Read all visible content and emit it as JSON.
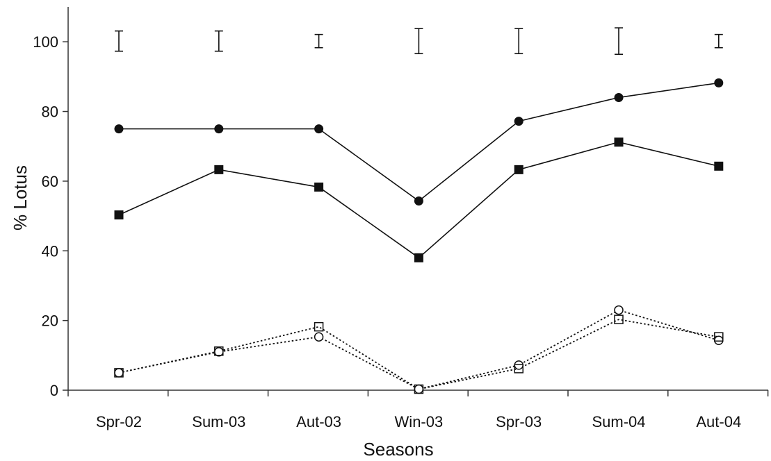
{
  "chart_data": {
    "type": "line",
    "xlabel": "Seasons",
    "ylabel": "% Lotus",
    "categories": [
      "Spr-02",
      "Sum-03",
      "Aut-03",
      "Win-03",
      "Spr-03",
      "Sum-04",
      "Aut-04"
    ],
    "ylim": [
      0,
      110
    ],
    "yticks": [
      0,
      20,
      40,
      60,
      80,
      100
    ],
    "grid": false,
    "legend": "none",
    "series": [
      {
        "marker": "filled-circle",
        "line": "solid",
        "values": [
          75,
          75,
          75,
          54.3,
          77.2,
          84,
          88.2
        ]
      },
      {
        "marker": "filled-square",
        "line": "solid",
        "values": [
          50.3,
          63.3,
          58.3,
          38,
          63.3,
          71.2,
          64.3
        ]
      },
      {
        "marker": "open-circle",
        "line": "dotted",
        "values": [
          5,
          11,
          15.3,
          0.3,
          7.2,
          23,
          14.3
        ]
      },
      {
        "marker": "open-square",
        "line": "dotted",
        "values": [
          5,
          11.2,
          18.2,
          0.3,
          6.2,
          20.3,
          15.3
        ]
      }
    ],
    "error_bars": {
      "center": [
        100.2,
        100.2,
        100.2,
        100.2,
        100.2,
        100.2,
        100.2
      ],
      "low": [
        97.3,
        97.3,
        98.3,
        96.6,
        96.6,
        96.4,
        98.3
      ],
      "high": [
        103.1,
        103.1,
        102.1,
        103.8,
        103.8,
        104,
        102.1
      ]
    },
    "colors": {
      "line": "#111111",
      "axis": "#333333"
    }
  }
}
